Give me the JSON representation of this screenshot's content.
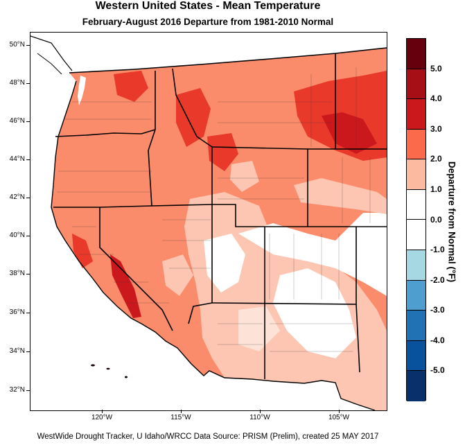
{
  "title": "Western United States - Mean Temperature",
  "subtitle": "February-August 2016  Departure from 1981-2010 Normal",
  "footer": "WestWide Drought Tracker, U Idaho/WRCC Data Source: PRISM (Prelim), created 25 MAY 2017",
  "map": {
    "latitude_labels": [
      "50°N",
      "48°N",
      "46°N",
      "44°N",
      "42°N",
      "40°N",
      "38°N",
      "36°N",
      "34°N",
      "32°N"
    ],
    "longitude_labels": [
      "120°W",
      "115°W",
      "110°W",
      "105°W"
    ]
  },
  "legend": {
    "title": "Departure from Normal (°F)",
    "labels": [
      "5.0",
      "4.0",
      "3.0",
      "2.0",
      "1.0",
      "0.0",
      "-1.0",
      "-2.0",
      "-3.0",
      "-4.0",
      "-5.0"
    ],
    "colors": [
      "#67000d",
      "#a50f15",
      "#cb181d",
      "#fb6a4a",
      "#fcbba1",
      "#ffffff",
      "#ffffff",
      "#a6d8e3",
      "#4f9ed0",
      "#2171b5",
      "#08519c",
      "#08306b"
    ]
  }
}
